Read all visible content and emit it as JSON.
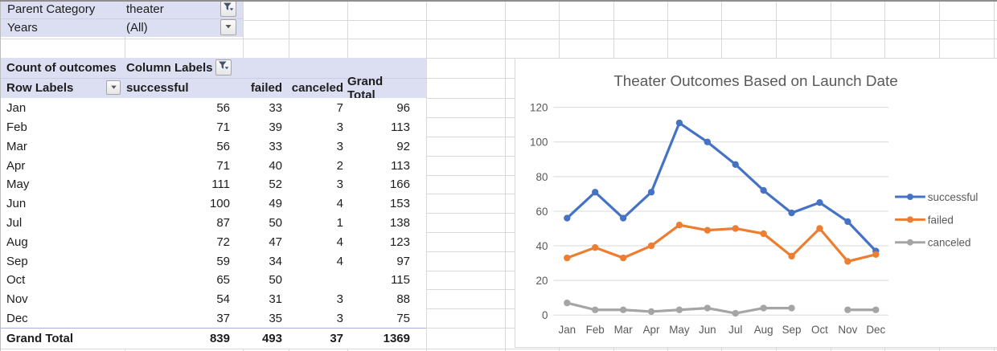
{
  "filters": {
    "parent_category": {
      "label": "Parent Category",
      "value": "theater"
    },
    "years": {
      "label": "Years",
      "value": "(All)"
    }
  },
  "pivot": {
    "measure_label": "Count of outcomes",
    "column_labels_label": "Column Labels",
    "row_labels_label": "Row Labels",
    "columns": [
      "successful",
      "failed",
      "canceled",
      "Grand Total"
    ],
    "rows": [
      {
        "label": "Jan",
        "successful": 56,
        "failed": 33,
        "canceled": 7,
        "grand_total": 96
      },
      {
        "label": "Feb",
        "successful": 71,
        "failed": 39,
        "canceled": 3,
        "grand_total": 113
      },
      {
        "label": "Mar",
        "successful": 56,
        "failed": 33,
        "canceled": 3,
        "grand_total": 92
      },
      {
        "label": "Apr",
        "successful": 71,
        "failed": 40,
        "canceled": 2,
        "grand_total": 113
      },
      {
        "label": "May",
        "successful": 111,
        "failed": 52,
        "canceled": 3,
        "grand_total": 166
      },
      {
        "label": "Jun",
        "successful": 100,
        "failed": 49,
        "canceled": 4,
        "grand_total": 153
      },
      {
        "label": "Jul",
        "successful": 87,
        "failed": 50,
        "canceled": 1,
        "grand_total": 138
      },
      {
        "label": "Aug",
        "successful": 72,
        "failed": 47,
        "canceled": 4,
        "grand_total": 123
      },
      {
        "label": "Sep",
        "successful": 59,
        "failed": 34,
        "canceled": 4,
        "grand_total": 97
      },
      {
        "label": "Oct",
        "successful": 65,
        "failed": 50,
        "canceled": null,
        "grand_total": 115
      },
      {
        "label": "Nov",
        "successful": 54,
        "failed": 31,
        "canceled": 3,
        "grand_total": 88
      },
      {
        "label": "Dec",
        "successful": 37,
        "failed": 35,
        "canceled": 3,
        "grand_total": 75
      }
    ],
    "grand_total": {
      "label": "Grand Total",
      "successful": 839,
      "failed": 493,
      "canceled": 37,
      "grand_total": 1369
    }
  },
  "chart_data": {
    "type": "line",
    "title": "Theater Outcomes Based on Launch Date",
    "categories": [
      "Jan",
      "Feb",
      "Mar",
      "Apr",
      "May",
      "Jun",
      "Jul",
      "Aug",
      "Sep",
      "Oct",
      "Nov",
      "Dec"
    ],
    "series": [
      {
        "name": "successful",
        "color": "#4472C4",
        "values": [
          56,
          71,
          56,
          71,
          111,
          100,
          87,
          72,
          59,
          65,
          54,
          37
        ]
      },
      {
        "name": "failed",
        "color": "#ED7D31",
        "values": [
          33,
          39,
          33,
          40,
          52,
          49,
          50,
          47,
          34,
          50,
          31,
          35
        ]
      },
      {
        "name": "canceled",
        "color": "#A5A5A5",
        "values": [
          7,
          3,
          3,
          2,
          3,
          4,
          1,
          4,
          4,
          null,
          3,
          3
        ]
      }
    ],
    "xlabel": "",
    "ylabel": "",
    "ylim": [
      0,
      120
    ],
    "ytick_step": 20,
    "grid": true,
    "legend_position": "right",
    "marker": "circle"
  },
  "colors": {
    "pivot_fill": "#DBDFF1",
    "gridline": "#D9D9D9",
    "axis_text": "#595959",
    "title_text": "#595959",
    "total_border": "#A3B3DB"
  },
  "icons": {
    "filter_icon": "funnel",
    "dropdown_icon": "down-arrow"
  }
}
